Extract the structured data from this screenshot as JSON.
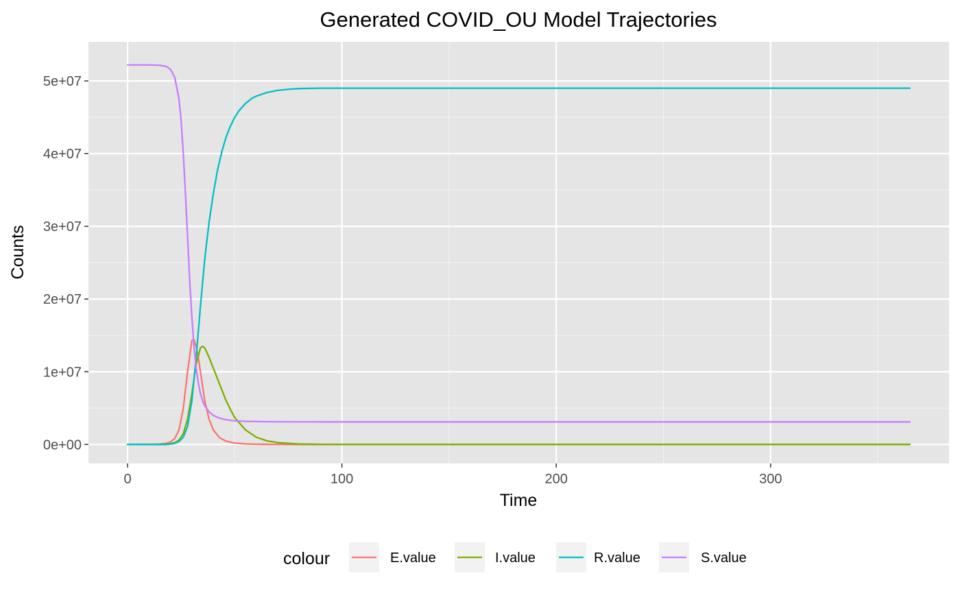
{
  "chart_data": {
    "type": "line",
    "title": "Generated COVID_OU Model Trajectories",
    "xlabel": "Time",
    "ylabel": "Counts",
    "xlim": [
      -18.25,
      383.25
    ],
    "ylim": [
      -2610000,
      55380000
    ],
    "x_ticks": [
      0,
      100,
      200,
      300
    ],
    "x_tick_labels": [
      "0",
      "100",
      "200",
      "300"
    ],
    "x_minor_ticks": [
      50,
      150,
      250,
      350
    ],
    "y_ticks": [
      0,
      10000000,
      20000000,
      30000000,
      40000000,
      50000000
    ],
    "y_tick_labels": [
      "0e+00",
      "1e+07",
      "2e+07",
      "3e+07",
      "4e+07",
      "5e+07"
    ],
    "y_minor_ticks": [
      5000000,
      15000000,
      25000000,
      35000000,
      45000000
    ],
    "grid": true,
    "legend": {
      "title": "colour",
      "position": "bottom"
    },
    "background": "#e5e5e5",
    "grid_color": "#ffffff",
    "series": [
      {
        "name": "E.value",
        "color": "#f8766d",
        "x": [
          0,
          10,
          15,
          18,
          20,
          22,
          24,
          26,
          28,
          30,
          31,
          32,
          33,
          34,
          35,
          36,
          38,
          40,
          43,
          46,
          50,
          55,
          60,
          70,
          80,
          90,
          100,
          150,
          200,
          250,
          300,
          365
        ],
        "y": [
          0,
          0,
          50000,
          150000,
          350000,
          800000,
          2000000,
          5000000,
          10000000,
          14300000,
          14400000,
          13500000,
          12000000,
          10000000,
          8000000,
          6000000,
          3500000,
          2000000,
          900000,
          450000,
          200000,
          80000,
          30000,
          8000,
          2000,
          500,
          0,
          0,
          0,
          0,
          0,
          0
        ]
      },
      {
        "name": "I.value",
        "color": "#7cae00",
        "x": [
          0,
          10,
          15,
          18,
          20,
          22,
          24,
          26,
          28,
          30,
          32,
          34,
          35,
          36,
          38,
          40,
          42,
          44,
          46,
          48,
          50,
          55,
          60,
          65,
          70,
          80,
          90,
          100,
          150,
          200,
          250,
          300,
          365
        ],
        "y": [
          0,
          0,
          0,
          50000,
          100000,
          250000,
          600000,
          1500000,
          3500000,
          7000000,
          11000000,
          13300000,
          13500000,
          13300000,
          12000000,
          10500000,
          9000000,
          7500000,
          6000000,
          4800000,
          3700000,
          2000000,
          1000000,
          500000,
          250000,
          60000,
          15000,
          0,
          0,
          0,
          0,
          0,
          0
        ]
      },
      {
        "name": "R.value",
        "color": "#00bfc4",
        "x": [
          0,
          10,
          15,
          18,
          20,
          22,
          24,
          26,
          28,
          30,
          32,
          34,
          36,
          38,
          40,
          42,
          44,
          46,
          48,
          50,
          52,
          55,
          58,
          60,
          65,
          70,
          75,
          80,
          90,
          100,
          150,
          200,
          250,
          300,
          365
        ],
        "y": [
          0,
          0,
          0,
          0,
          50000,
          150000,
          400000,
          1000000,
          2500000,
          6000000,
          12000000,
          19000000,
          25500000,
          30500000,
          34500000,
          37800000,
          40300000,
          42300000,
          43800000,
          45000000,
          45900000,
          46900000,
          47600000,
          47900000,
          48400000,
          48700000,
          48850000,
          48950000,
          49000000,
          49000000,
          49000000,
          49000000,
          49000000,
          49000000,
          49000000
        ]
      },
      {
        "name": "S.value",
        "color": "#c77cff",
        "x": [
          0,
          10,
          15,
          18,
          20,
          22,
          24,
          25,
          26,
          27,
          28,
          29,
          30,
          31,
          32,
          33,
          34,
          35,
          36,
          38,
          40,
          43,
          46,
          50,
          55,
          60,
          70,
          80,
          100,
          150,
          200,
          250,
          300,
          365
        ],
        "y": [
          52200000,
          52200000,
          52150000,
          52000000,
          51600000,
          50500000,
          47500000,
          44500000,
          40000000,
          34500000,
          28500000,
          22500000,
          17500000,
          13500000,
          10500000,
          8500000,
          7000000,
          6000000,
          5300000,
          4500000,
          4000000,
          3600000,
          3400000,
          3250000,
          3180000,
          3150000,
          3120000,
          3110000,
          3100000,
          3100000,
          3100000,
          3100000,
          3100000,
          3100000
        ]
      }
    ]
  }
}
